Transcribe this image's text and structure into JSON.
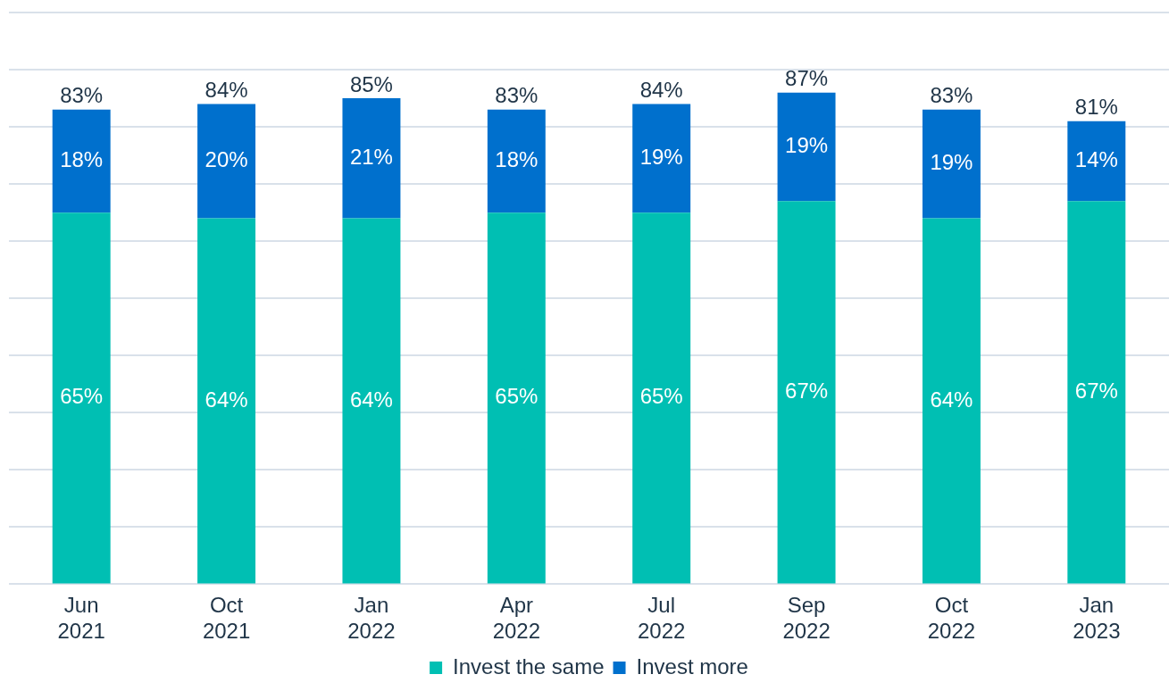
{
  "chart_data": {
    "type": "bar",
    "stacked": true,
    "categories": [
      "Jun 2021",
      "Oct 2021",
      "Jan 2022",
      "Apr 2022",
      "Jul 2022",
      "Sep 2022",
      "Oct 2022",
      "Jan 2023"
    ],
    "series": [
      {
        "name": "Invest the same",
        "color": "#00bfb3",
        "values": [
          65,
          64,
          64,
          65,
          65,
          67,
          64,
          67
        ],
        "value_labels": [
          "65%",
          "64%",
          "64%",
          "65%",
          "65%",
          "67%",
          "64%",
          "67%"
        ]
      },
      {
        "name": "Invest more",
        "color": "#0070cd",
        "values": [
          18,
          20,
          21,
          18,
          19,
          19,
          19,
          14
        ],
        "value_labels": [
          "18%",
          "20%",
          "21%",
          "18%",
          "19%",
          "19%",
          "19%",
          "14%"
        ]
      }
    ],
    "totals": [
      "83%",
      "84%",
      "85%",
      "83%",
      "84%",
      "87%",
      "83%",
      "81%"
    ],
    "tick_labels": "x",
    "grid": "y",
    "legend": "bottom"
  }
}
